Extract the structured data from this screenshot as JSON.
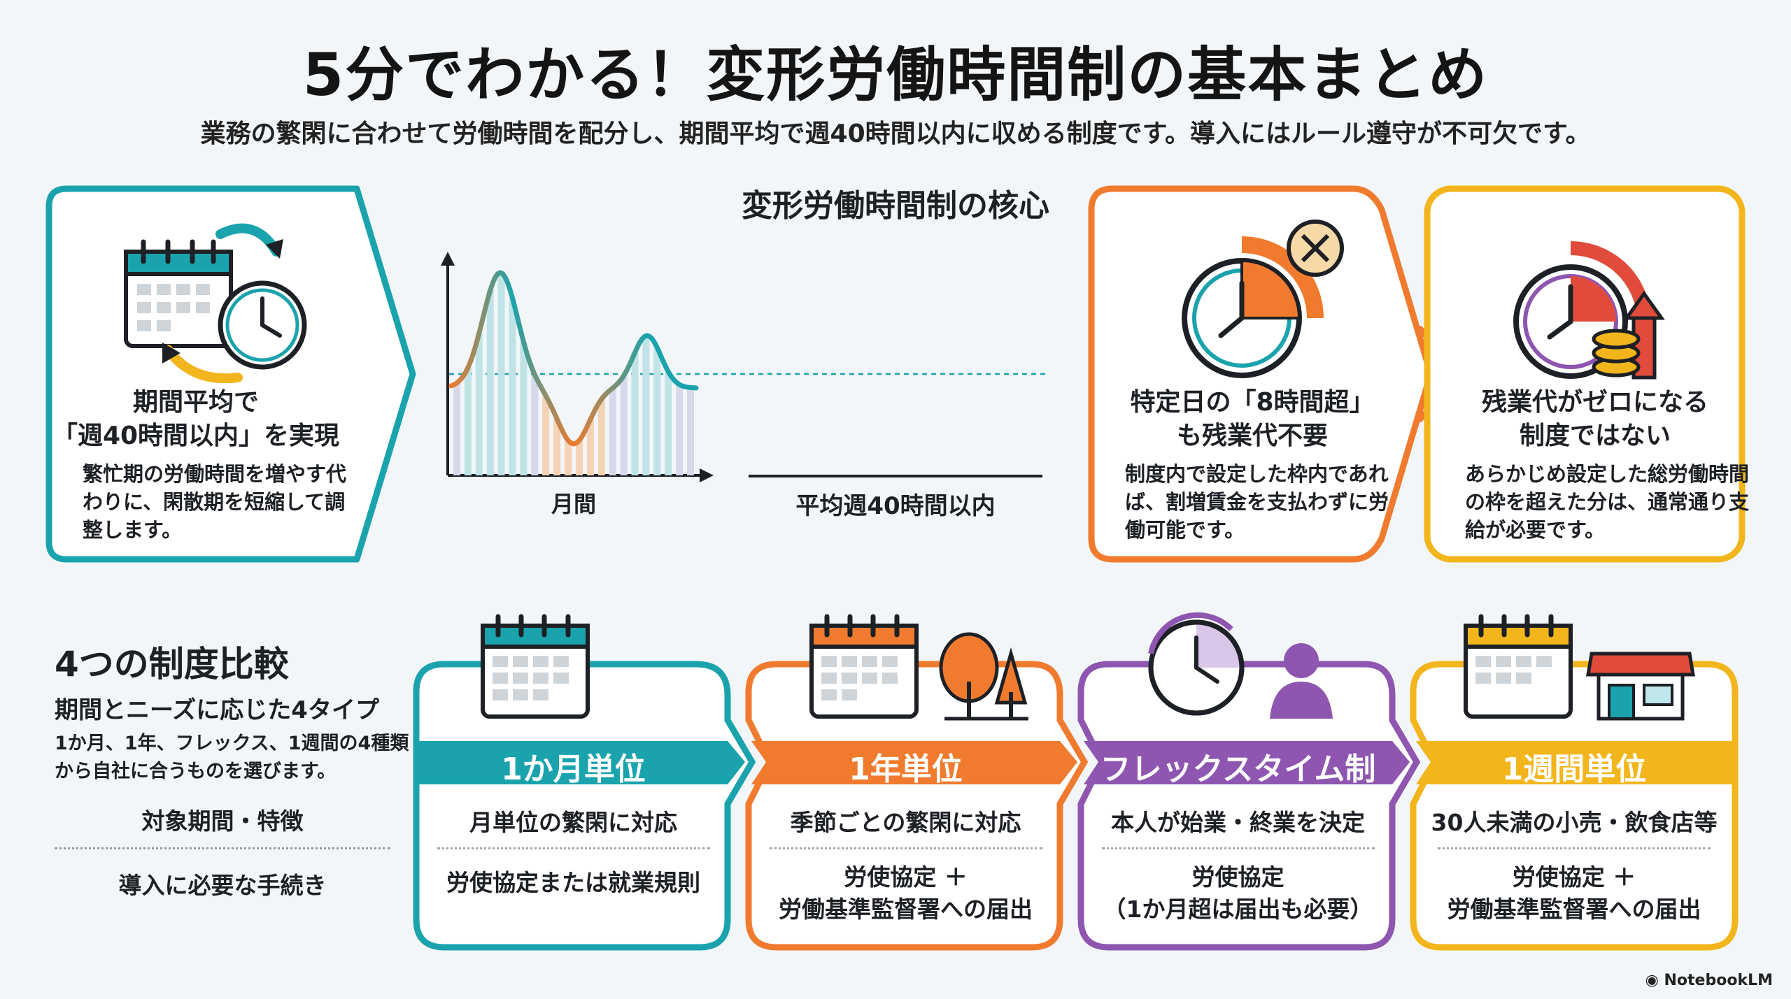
{
  "title": "5分でわかる！変形労働時間制の基本まとめ",
  "subtitle": "業務の繁閑に合わせて労働時間を配分し、期間平均で週40時間以内に収める制度です。導入にはルール遵守が不可欠です。",
  "core": {
    "title": "変形労働時間制の核心",
    "card1": {
      "heading_line1": "期間平均で",
      "heading_line2": "「週40時間以内」を実現",
      "body": "繁忙期の労働時間を増やす代わりに、閑散期を短縮して調整します。",
      "icon": "calendar-clock-cycle-icon"
    },
    "chart": {
      "x_label": "月間",
      "avg_label": "平均週40時間以内"
    },
    "card3": {
      "heading_line1": "特定日の「8時間超」",
      "heading_line2": "も残業代不要",
      "body": "制度内で設定した枠内であれば、割増賃金を支払わずに労働可能です。",
      "icon": "clock-no-overtime-icon"
    },
    "card4": {
      "heading_line1": "残業代がゼロになる",
      "heading_line2": "制度ではない",
      "body": "あらかじめ設定した総労働時間の枠を超えた分は、通常通り支給が必要です。",
      "icon": "clock-coins-arrow-icon"
    }
  },
  "compare": {
    "title": "4つの制度比較",
    "subtitle": "期間とニーズに応じた4タイプ",
    "description": "1か月、1年、フレックス、1週間の4種類から自社に合うものを選びます。",
    "row_label_1": "対象期間・特徴",
    "row_label_2": "導入に必要な手続き",
    "types": [
      {
        "name": "1か月単位",
        "feature": "月単位の繁閑に対応",
        "procedure_line1": "労使協定または就業規則",
        "procedure_line2": "",
        "color": "#1aa3ad",
        "icon": "calendar-icon"
      },
      {
        "name": "1年単位",
        "feature": "季節ごとの繁閑に対応",
        "procedure_line1": "労使協定 ＋",
        "procedure_line2": "労働基準監督署への届出",
        "color": "#f07b2e",
        "icon": "calendar-trees-icon"
      },
      {
        "name": "フレックスタイム制",
        "feature": "本人が始業・終業を決定",
        "procedure_line1": "労使協定",
        "procedure_line2": "（1か月超は届出も必要）",
        "color": "#8e56b0",
        "icon": "clock-person-icon"
      },
      {
        "name": "1週間単位",
        "feature": "30人未満の小売・飲食店等",
        "procedure_line1": "労使協定 ＋",
        "procedure_line2": "労働基準監督署への届出",
        "color": "#f2b51c",
        "icon": "calendar-shop-icon"
      }
    ]
  },
  "logo": "NotebookLM"
}
